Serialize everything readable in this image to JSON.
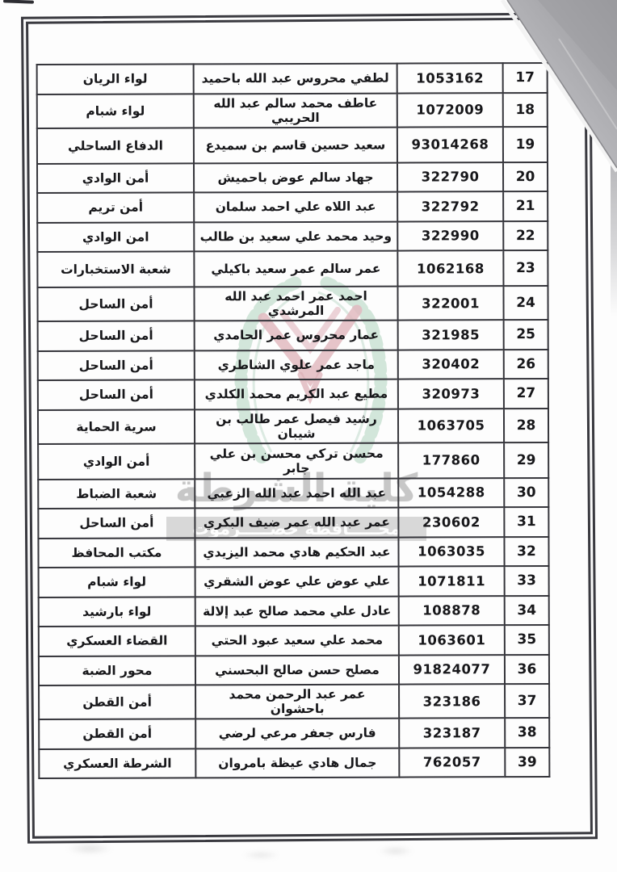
{
  "page": {
    "kind": "scanned-personnel-roster-page",
    "watermark": {
      "title": "كلية الشرطة",
      "subtitle": "محـــــافظة حضـــــرموت",
      "emblem_icon": "laurel-wreath-emblem"
    },
    "table": {
      "rows": [
        {
          "no": "17",
          "id": "1053162",
          "name": "لطفي محروس عبد الله باحميد",
          "unit": "لواء الريان"
        },
        {
          "no": "18",
          "id": "1072009",
          "name": "عاطف محمد سالم عبد الله الحريبي",
          "unit": "لواء شبام"
        },
        {
          "no": "19",
          "id": "93014268",
          "name": "سعيد حسين قاسم بن سميدع",
          "unit": "الدفاع الساحلي"
        },
        {
          "no": "20",
          "id": "322790",
          "name": "جهاد سالم عوض باحميش",
          "unit": "أمن الوادي"
        },
        {
          "no": "21",
          "id": "322792",
          "name": "عبد اللاه علي احمد سلمان",
          "unit": "أمن تريم"
        },
        {
          "no": "22",
          "id": "322990",
          "name": "وحيد محمد علي سعيد بن طالب",
          "unit": "امن الوادي"
        },
        {
          "no": "23",
          "id": "1062168",
          "name": "عمر سالم عمر سعيد باكيلي",
          "unit": "شعبة الاستخبارات"
        },
        {
          "no": "24",
          "id": "322001",
          "name": "احمد عمر احمد عبد الله المرشدي",
          "unit": "أمن الساحل"
        },
        {
          "no": "25",
          "id": "321985",
          "name": "عمار محروس عمر الحامدي",
          "unit": "أمن الساحل"
        },
        {
          "no": "26",
          "id": "320402",
          "name": "ماجد عمر علوي الشاطري",
          "unit": "أمن الساحل"
        },
        {
          "no": "27",
          "id": "320973",
          "name": "مطيع عبد الكريم محمد الكلدي",
          "unit": "أمن الساحل"
        },
        {
          "no": "28",
          "id": "1063705",
          "name": "رشيد فيصل عمر طالب بن شيبان",
          "unit": "سرية الحماية"
        },
        {
          "no": "29",
          "id": "177860",
          "name": "محسن تركي محسن بن علي جابر",
          "unit": "أمن الوادي"
        },
        {
          "no": "30",
          "id": "1054288",
          "name": "عبد الله احمد عبد الله الزعبي",
          "unit": "شعبة الضباط"
        },
        {
          "no": "31",
          "id": "230602",
          "name": "عمر عبد الله عمر ضيف البكري",
          "unit": "أمن الساحل"
        },
        {
          "no": "32",
          "id": "1063035",
          "name": "عبد الحكيم هادي محمد اليزيدي",
          "unit": "مكتب المحافظ"
        },
        {
          "no": "33",
          "id": "1071811",
          "name": "علي عوض علي عوض الشقري",
          "unit": "لواء شبام"
        },
        {
          "no": "34",
          "id": "108878",
          "name": "عادل علي محمد صالح عبد إلالة",
          "unit": "لواء بارشيد"
        },
        {
          "no": "35",
          "id": "1063601",
          "name": "محمد علي سعيد عبود الحتي",
          "unit": "القضاء العسكري"
        },
        {
          "no": "36",
          "id": "91824077",
          "name": "مصلح حسن صالح البحسني",
          "unit": "محور الضبة"
        },
        {
          "no": "37",
          "id": "323186",
          "name": "عمر عبد الرحمن محمد باحشوان",
          "unit": "أمن القطن"
        },
        {
          "no": "38",
          "id": "323187",
          "name": "فارس جعفر مرعي لرضي",
          "unit": "أمن القطن"
        },
        {
          "no": "39",
          "id": "762057",
          "name": "جمال هادي عيظة بامروان",
          "unit": "الشرطة العسكري"
        }
      ]
    },
    "colors": {
      "ink": "#17171a",
      "table_border": "#35353b",
      "frame_border": "#3a3a40",
      "watermark_text": "#c7c7c7",
      "watermark_band": "#bababa",
      "wreath_green": "#b9d8c5",
      "emblem_red": "#d1929b",
      "page_curl_gray": "#a4a4a8"
    }
  }
}
